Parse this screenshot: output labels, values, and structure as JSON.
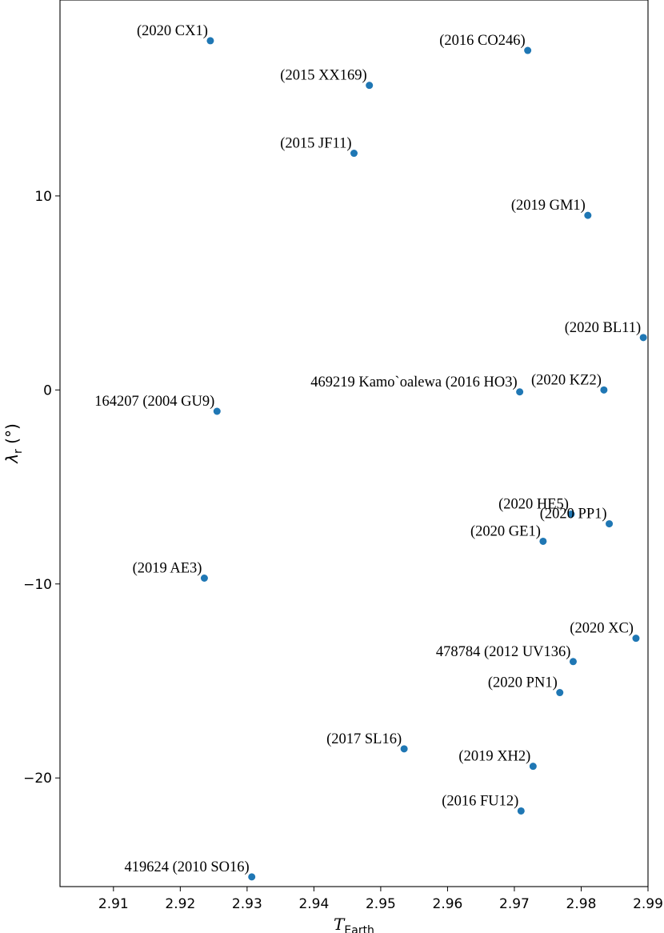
{
  "chart_data": {
    "type": "scatter",
    "xlabel": "T",
    "xlabel_sub": "Earth",
    "ylabel": "λ",
    "ylabel_sub": "r",
    "ylabel_unit": " (°)",
    "xlim": [
      2.902,
      2.99
    ],
    "ylim": [
      -25.6,
      20.1
    ],
    "xticks": [
      2.91,
      2.92,
      2.93,
      2.94,
      2.95,
      2.96,
      2.97,
      2.98,
      2.99
    ],
    "xtick_labels": [
      "2.91",
      "2.92",
      "2.93",
      "2.94",
      "2.95",
      "2.96",
      "2.97",
      "2.98",
      "2.99"
    ],
    "yticks": [
      10,
      0,
      -10,
      -20
    ],
    "ytick_labels": [
      "10",
      "0",
      "−10",
      "−20"
    ],
    "grid": false,
    "marker_color": "#1f77b4",
    "points": [
      {
        "label": "(2020 CX1)",
        "x": 2.9245,
        "y": 18.0
      },
      {
        "label": "(2016 CO246)",
        "x": 2.972,
        "y": 17.5
      },
      {
        "label": "(2015 XX169)",
        "x": 2.9483,
        "y": 15.7
      },
      {
        "label": "(2015 JF11)",
        "x": 2.946,
        "y": 12.2
      },
      {
        "label": "(2019 GM1)",
        "x": 2.981,
        "y": 9.0
      },
      {
        "label": "(2020 BL11)",
        "x": 2.9893,
        "y": 2.7
      },
      {
        "label": "469219 Kamo`oalewa (2016 HO3)",
        "x": 2.9708,
        "y": -0.1
      },
      {
        "label": "(2020 KZ2)",
        "x": 2.9834,
        "y": 0.0
      },
      {
        "label": "164207 (2004 GU9)",
        "x": 2.9255,
        "y": -1.1
      },
      {
        "label": "(2020 HE5)",
        "x": 2.9785,
        "y": -6.4
      },
      {
        "label": "(2020 PP1)",
        "x": 2.9842,
        "y": -6.9
      },
      {
        "label": "(2020 GE1)",
        "x": 2.9743,
        "y": -7.8
      },
      {
        "label": "(2019 AE3)",
        "x": 2.9236,
        "y": -9.7
      },
      {
        "label": "(2020 XC)",
        "x": 2.9882,
        "y": -12.8
      },
      {
        "label": "478784 (2012 UV136)",
        "x": 2.9788,
        "y": -14.0
      },
      {
        "label": "(2020 PN1)",
        "x": 2.9768,
        "y": -15.6
      },
      {
        "label": "(2017 SL16)",
        "x": 2.9535,
        "y": -18.5
      },
      {
        "label": "(2019 XH2)",
        "x": 2.9728,
        "y": -19.4
      },
      {
        "label": "(2016 FU12)",
        "x": 2.971,
        "y": -21.7
      },
      {
        "label": "419624 (2010 SO16)",
        "x": 2.9307,
        "y": -25.1
      }
    ]
  }
}
